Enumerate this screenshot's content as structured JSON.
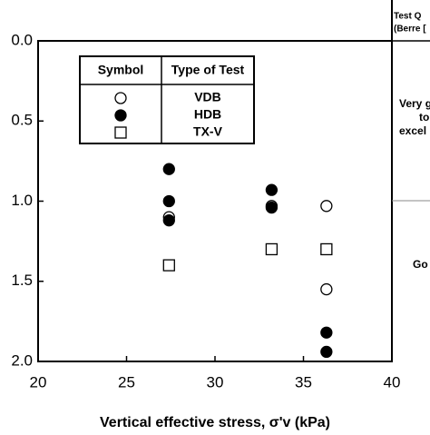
{
  "chart_data": {
    "type": "scatter",
    "xlabel": "Vertical effective stress, σ'v (kPa)",
    "xlim": [
      20,
      40
    ],
    "xticks": [
      20,
      25,
      30,
      35,
      40
    ],
    "ylim": [
      0,
      2
    ],
    "y_inverted": true,
    "yticks": [
      {
        "value": 0,
        "label": "0.0"
      },
      {
        "value": 0.5,
        "label": "0.5"
      },
      {
        "value": 1,
        "label": "1.0"
      },
      {
        "value": 1.5,
        "label": "1.5"
      },
      {
        "value": 2,
        "label": "2.0"
      }
    ],
    "legend_header": [
      "Symbol",
      "Type of Test"
    ],
    "series": [
      {
        "name": "VDB",
        "marker": "open-circle",
        "color": "#000000",
        "x": [
          27.4,
          33.2,
          36.3,
          36.3
        ],
        "values": [
          1.1,
          1.03,
          1.03,
          1.55
        ]
      },
      {
        "name": "HDB",
        "marker": "filled-circle",
        "color": "#000000",
        "x": [
          27.4,
          27.4,
          27.4,
          33.2,
          33.2,
          36.3,
          36.3
        ],
        "values": [
          0.8,
          1.0,
          1.12,
          0.93,
          1.04,
          1.82,
          1.94
        ]
      },
      {
        "name": "TX-V",
        "marker": "open-square",
        "color": "#000000",
        "x": [
          27.4,
          33.2,
          36.3
        ],
        "values": [
          1.4,
          1.3,
          1.3
        ]
      }
    ],
    "side_table": {
      "header": [
        "Test Q",
        "(Berre ["
      ],
      "rows": [
        [
          "Very g",
          "to",
          "excel"
        ],
        [
          "Go"
        ]
      ]
    }
  }
}
